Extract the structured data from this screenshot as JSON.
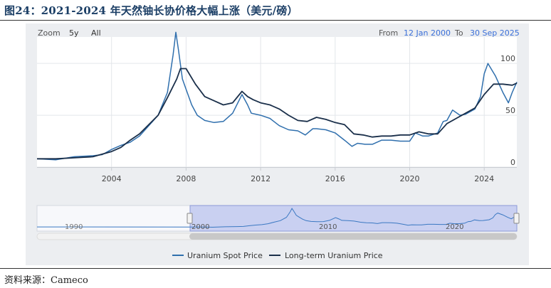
{
  "figure_title": "图24：2021-2024 年天然铀长协价格大幅上涨（美元/磅）",
  "toolbar": {
    "zoom_label": "Zoom",
    "zoom_options": [
      "5y",
      "All"
    ],
    "from_label": "From",
    "from_date": "12 Jan 2000",
    "to_label": "To",
    "to_date": "30 Sep 2025"
  },
  "source_text": "资料来源：Cameco",
  "colors": {
    "spot": "#2f6fad",
    "longterm": "#1a2f4a",
    "link": "#3a6fd8",
    "navigator_fill": "#b9c3ee"
  },
  "chart_data": {
    "type": "line",
    "title": "",
    "xlabel": "",
    "ylabel": "",
    "xlim": [
      2000,
      2025.75
    ],
    "ylim": [
      0,
      120
    ],
    "x_ticks": [
      2004,
      2008,
      2012,
      2016,
      2020,
      2024
    ],
    "y_ticks": [
      0,
      50,
      100
    ],
    "grid": true,
    "legend": "bottom",
    "series": [
      {
        "name": "Uranium Spot Price",
        "x": [
          2000.0,
          2001.0,
          2002.0,
          2003.0,
          2003.5,
          2004.0,
          2004.5,
          2005.0,
          2005.5,
          2006.0,
          2006.5,
          2007.0,
          2007.3,
          2007.45,
          2007.6,
          2007.8,
          2008.0,
          2008.3,
          2008.6,
          2009.0,
          2009.5,
          2010.0,
          2010.5,
          2011.0,
          2011.3,
          2011.5,
          2012.0,
          2012.5,
          2013.0,
          2013.5,
          2014.0,
          2014.4,
          2014.8,
          2015.0,
          2015.5,
          2016.0,
          2016.5,
          2016.9,
          2017.2,
          2017.6,
          2018.0,
          2018.5,
          2019.0,
          2019.5,
          2020.0,
          2020.3,
          2020.7,
          2021.0,
          2021.5,
          2021.8,
          2022.0,
          2022.3,
          2022.7,
          2023.0,
          2023.5,
          2023.8,
          2024.0,
          2024.2,
          2024.6,
          2025.0,
          2025.3,
          2025.5,
          2025.75
        ],
        "y": [
          8,
          7,
          10,
          11,
          12,
          17,
          21,
          24,
          30,
          40,
          50,
          72,
          108,
          130,
          112,
          85,
          75,
          60,
          50,
          45,
          43,
          44,
          52,
          70,
          60,
          52,
          50,
          47,
          40,
          36,
          35,
          31,
          37,
          37,
          36,
          33,
          26,
          20,
          23,
          22,
          22,
          26,
          26,
          25,
          25,
          33,
          30,
          30,
          33,
          44,
          45,
          55,
          50,
          51,
          56,
          68,
          90,
          100,
          88,
          72,
          62,
          72,
          82
        ]
      },
      {
        "name": "Long-term Uranium Price",
        "x": [
          2000.0,
          2001.0,
          2002.0,
          2003.0,
          2004.0,
          2004.5,
          2005.0,
          2005.5,
          2006.0,
          2006.5,
          2007.0,
          2007.5,
          2007.7,
          2008.0,
          2008.5,
          2009.0,
          2009.5,
          2010.0,
          2010.5,
          2011.0,
          2011.3,
          2011.6,
          2012.0,
          2012.5,
          2013.0,
          2013.5,
          2014.0,
          2014.5,
          2015.0,
          2015.5,
          2016.0,
          2016.5,
          2017.0,
          2017.5,
          2018.0,
          2018.5,
          2019.0,
          2019.5,
          2020.0,
          2020.5,
          2021.0,
          2021.5,
          2022.0,
          2022.5,
          2023.0,
          2023.5,
          2024.0,
          2024.5,
          2025.0,
          2025.5,
          2025.75
        ],
        "y": [
          8,
          8,
          9,
          10,
          15,
          19,
          26,
          32,
          41,
          50,
          67,
          85,
          95,
          95,
          80,
          68,
          64,
          60,
          62,
          73,
          68,
          65,
          62,
          60,
          56,
          50,
          45,
          44,
          48,
          46,
          43,
          41,
          32,
          31,
          29,
          30,
          30,
          31,
          31,
          34,
          32,
          32,
          42,
          47,
          52,
          57,
          70,
          80,
          80,
          79,
          81
        ]
      }
    ]
  },
  "navigator": {
    "tick_labels": [
      "1990",
      "2000",
      "2010",
      "2020"
    ]
  }
}
